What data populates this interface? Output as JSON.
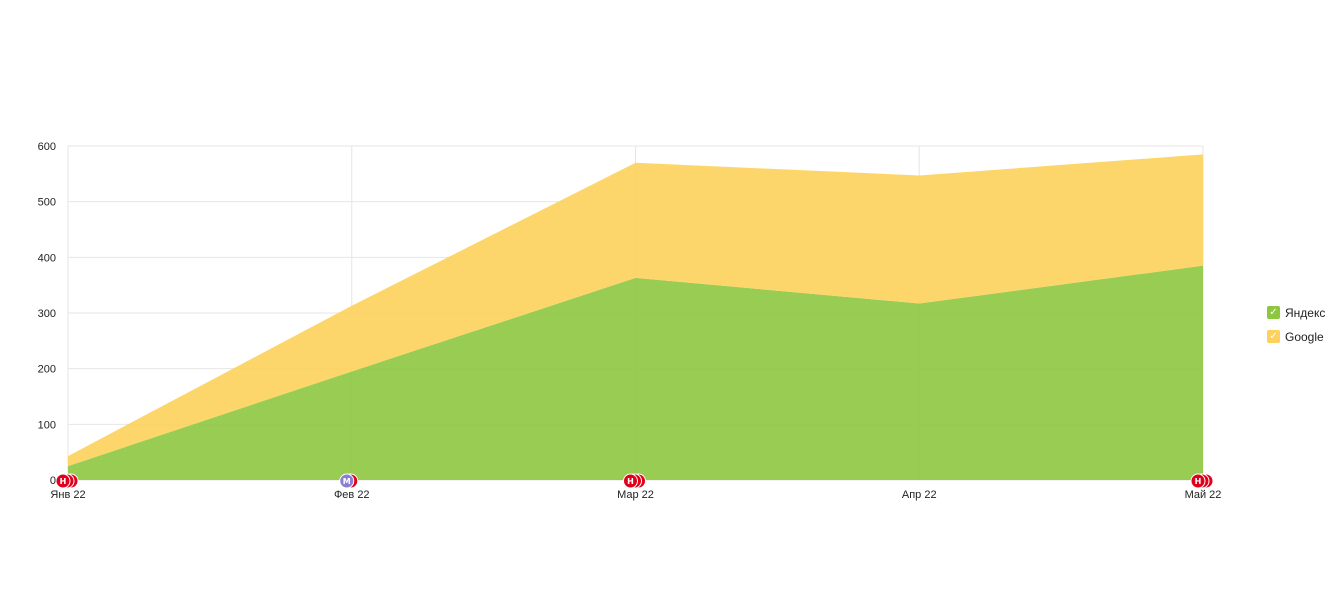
{
  "chart_data": {
    "type": "area",
    "stacked": true,
    "title": "",
    "xlabel": "",
    "ylabel": "",
    "categories": [
      "Янв 22",
      "Фев 22",
      "Мар 22",
      "Апр 22",
      "Май 22"
    ],
    "ylim": [
      0,
      600
    ],
    "yticks": [
      "0",
      "100",
      "200",
      "300",
      "400",
      "500",
      "600"
    ],
    "grid": true,
    "legend_position": "right",
    "series": [
      {
        "name": "Яндекс",
        "color": "#8dc63f",
        "values": [
          25,
          195,
          363,
          317,
          385
        ]
      },
      {
        "name": "Google",
        "color": "#fdd15b",
        "values": [
          18,
          118,
          207,
          230,
          200
        ]
      }
    ],
    "annotations": [
      {
        "category": "Янв 22",
        "markers": [
          "Н",
          "",
          ""
        ],
        "colors": [
          "#e0001b",
          "#e0001b",
          "#e0001b"
        ]
      },
      {
        "category": "Фев 22",
        "markers": [
          "М",
          ""
        ],
        "colors": [
          "#8a7fd6",
          "#e0001b"
        ]
      },
      {
        "category": "Мар 22",
        "markers": [
          "Н",
          "",
          ""
        ],
        "colors": [
          "#e0001b",
          "#e0001b",
          "#e0001b"
        ]
      },
      {
        "category": "Май 22",
        "markers": [
          "Н",
          "",
          ""
        ],
        "colors": [
          "#e0001b",
          "#e0001b",
          "#e0001b"
        ]
      }
    ]
  },
  "legend": {
    "items": [
      {
        "label": "Яндекс",
        "color": "#8dc63f",
        "check": "✓"
      },
      {
        "label": "Google",
        "color": "#fdd15b",
        "check": "✓"
      }
    ]
  }
}
